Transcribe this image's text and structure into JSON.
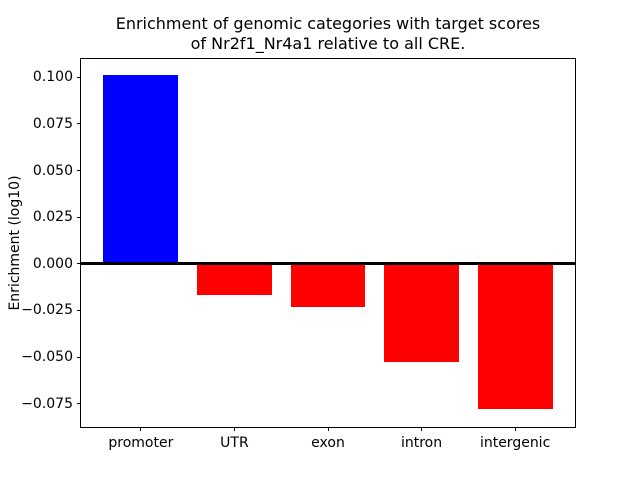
{
  "figure": {
    "title_line1": "Enrichment of genomic categories with target scores",
    "title_line2": "of Nr2f1_Nr4a1 relative to all CRE.",
    "ylabel": "Enrichment (log10)"
  },
  "chart_data": {
    "type": "bar",
    "title": "Enrichment of genomic categories with target scores\nof Nr2f1_Nr4a1 relative to all CRE.",
    "xlabel": "",
    "ylabel": "Enrichment (log10)",
    "categories": [
      "promoter",
      "UTR",
      "exon",
      "intron",
      "intergenic"
    ],
    "values": [
      0.101,
      -0.017,
      -0.023,
      -0.0525,
      -0.078
    ],
    "bar_colors": [
      "#0000ff",
      "#ff0000",
      "#ff0000",
      "#ff0000",
      "#ff0000"
    ],
    "positive_color": "#0000ff",
    "negative_color": "#ff0000",
    "background_color": "#ffffff",
    "axis_color": "#000000",
    "ylim": [
      -0.0875,
      0.1098
    ],
    "xlim": [
      -0.64,
      4.64
    ],
    "bar_width": 0.8,
    "yticks": [
      0.1,
      0.075,
      0.05,
      0.025,
      0.0,
      -0.025,
      -0.05,
      -0.075
    ],
    "ytick_labels": [
      "0.100",
      "0.075",
      "0.050",
      "0.025",
      "0.000",
      "−0.025",
      "−0.050",
      "−0.075"
    ],
    "grid": false,
    "zero_line": 0,
    "legend": false
  }
}
